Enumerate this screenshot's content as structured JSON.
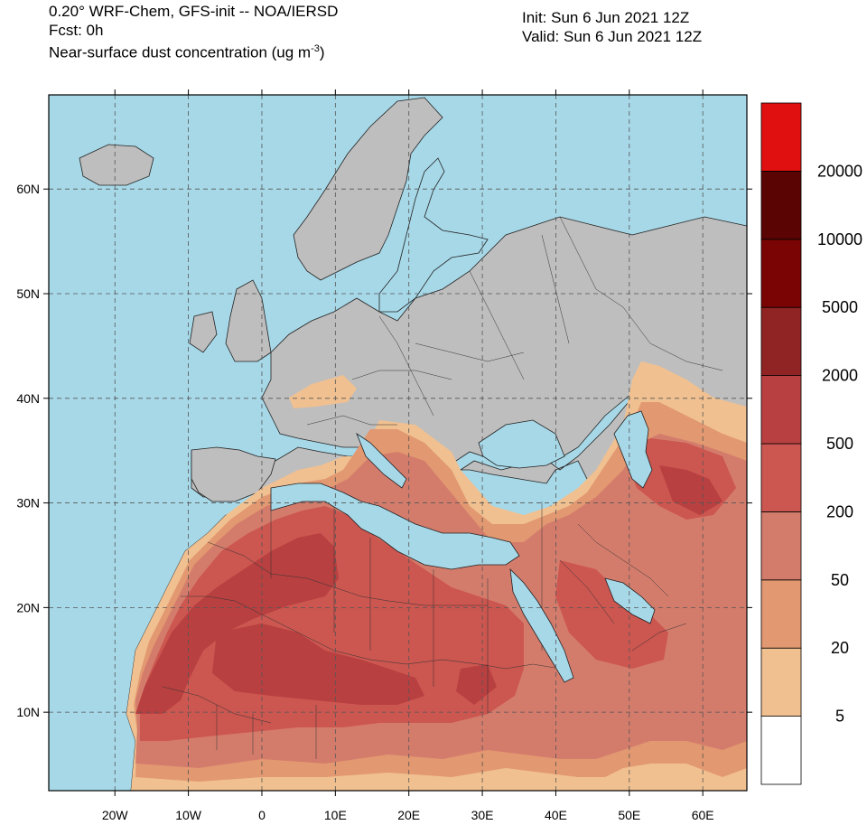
{
  "header": {
    "model": "0.20° WRF-Chem, GFS-init -- NOA/IERSD",
    "forecast": "Fcst: 0h",
    "field": "Near-surface dust concentration (ug m",
    "unit_exponent": "-3",
    "unit_close": ")",
    "init": "Init: Sun 6 Jun 2021  12Z",
    "valid": "Valid: Sun 6 Jun 2021  12Z"
  },
  "map": {
    "lon_range": [
      -29,
      66
    ],
    "lat_range": [
      2.5,
      69
    ],
    "lon_ticks": [
      {
        "value": -20,
        "label": "20W"
      },
      {
        "value": -10,
        "label": "10W"
      },
      {
        "value": 0,
        "label": "0"
      },
      {
        "value": 10,
        "label": "10E"
      },
      {
        "value": 20,
        "label": "20E"
      },
      {
        "value": 30,
        "label": "30E"
      },
      {
        "value": 40,
        "label": "40E"
      },
      {
        "value": 50,
        "label": "50E"
      },
      {
        "value": 60,
        "label": "60E"
      }
    ],
    "lat_ticks": [
      {
        "value": 10,
        "label": "10N"
      },
      {
        "value": 20,
        "label": "20N"
      },
      {
        "value": 30,
        "label": "30N"
      },
      {
        "value": 40,
        "label": "40N"
      },
      {
        "value": 50,
        "label": "50N"
      },
      {
        "value": 60,
        "label": "60N"
      }
    ],
    "ocean_color": "#a7d8e8",
    "land_color": "#bebebe"
  },
  "colorbar": {
    "levels": [
      "5",
      "20",
      "50",
      "200",
      "500",
      "2000",
      "5000",
      "10000",
      "20000"
    ],
    "colors": [
      "#ffffff",
      "#f0c090",
      "#e29870",
      "#d47c6c",
      "#cc5650",
      "#b84040",
      "#902424",
      "#7a0404",
      "#5a0404",
      "#e01010"
    ]
  }
}
